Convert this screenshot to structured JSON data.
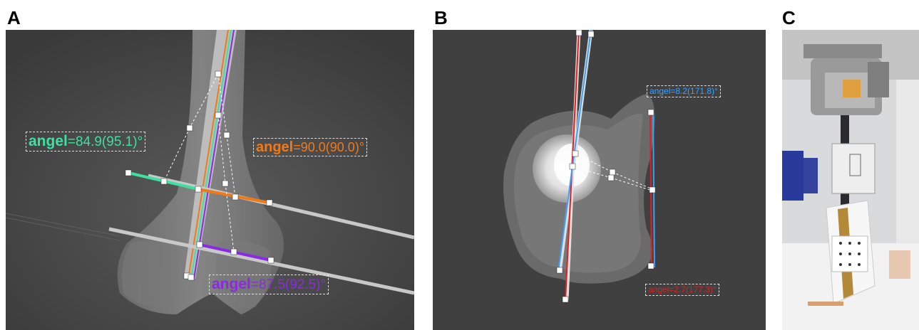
{
  "panels": {
    "a": {
      "letter": "A"
    },
    "b": {
      "letter": "B"
    },
    "c": {
      "letter": "C"
    }
  },
  "annotations": {
    "a_green": {
      "word": "angel",
      "value": "=84.9(95.1)°",
      "color": "#3ee0a0"
    },
    "a_orange": {
      "word": "angel",
      "value": "=90.0(90.0)°",
      "color": "#f07a1a"
    },
    "a_purple": {
      "word": "angel",
      "value": "=87.5(92.5)°",
      "color": "#8a2be2"
    },
    "b_blue": {
      "text": "angel=8.2(171.8)°",
      "color": "#3aa0ff"
    },
    "b_red": {
      "text": "angel=2.7(177.3)°",
      "color": "#e02020"
    }
  }
}
